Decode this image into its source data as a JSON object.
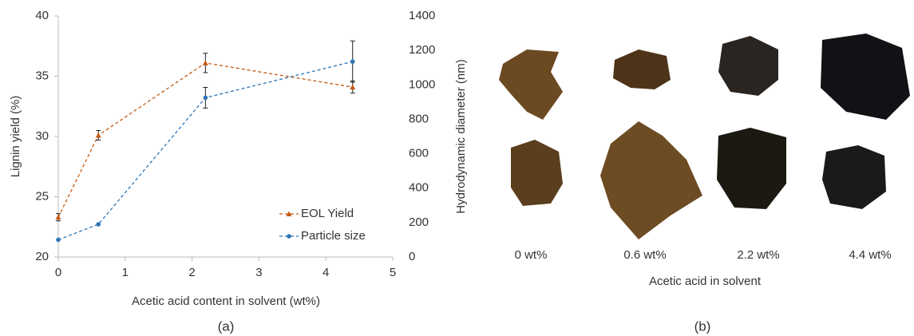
{
  "chart_data": {
    "type": "line",
    "x_label": "Acetic acid content in solvent (wt%)",
    "y_label": "Lignin yield  (%)",
    "y2_label": "Hydrodynamic diameter (nm)",
    "xlim": [
      0,
      5
    ],
    "xticks": [
      0,
      1,
      2,
      3,
      4,
      5
    ],
    "ylim": [
      20,
      40
    ],
    "yticks": [
      20,
      25,
      30,
      35,
      40
    ],
    "y2lim": [
      0,
      1400
    ],
    "y2ticks": [
      0,
      200,
      400,
      600,
      800,
      1000,
      1200,
      1400
    ],
    "x": [
      0,
      0.6,
      2.2,
      4.4
    ],
    "series": [
      {
        "name": "EOL Yield",
        "color": "#c55a11",
        "marker": "triangle",
        "values": [
          23.3,
          30.1,
          36.1,
          34.1
        ],
        "errors": [
          0.3,
          0.4,
          0.8,
          0.5
        ]
      },
      {
        "name": "Particle size",
        "color": "#2e75b6",
        "marker": "circle",
        "axis": "y2",
        "values": [
          100,
          190,
          925,
          1135
        ],
        "errors": [
          null,
          null,
          60,
          120
        ]
      }
    ],
    "legend": "lower right"
  },
  "photo_panel": {
    "labels": [
      "0 wt%",
      "0.6 wt%",
      "2.2 wt%",
      "4.4 wt%"
    ],
    "axis_label": "Acetic acid in solvent"
  },
  "panel_labels": [
    "(a)",
    "(b)"
  ]
}
